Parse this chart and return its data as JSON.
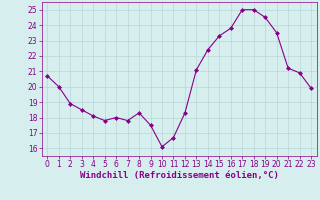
{
  "x": [
    0,
    1,
    2,
    3,
    4,
    5,
    6,
    7,
    8,
    9,
    10,
    11,
    12,
    13,
    14,
    15,
    16,
    17,
    18,
    19,
    20,
    21,
    22,
    23
  ],
  "y": [
    20.7,
    20.0,
    18.9,
    18.5,
    18.1,
    17.8,
    18.0,
    17.8,
    18.3,
    17.5,
    16.1,
    16.7,
    18.3,
    21.1,
    22.4,
    23.3,
    23.8,
    25.0,
    25.0,
    24.5,
    23.5,
    21.2,
    20.9,
    19.9
  ],
  "line_color": "#880088",
  "marker": "D",
  "marker_size": 2.0,
  "bg_color": "#d6eeee",
  "grid_color": "#b8d8d8",
  "xlabel": "Windchill (Refroidissement éolien,°C)",
  "ylim": [
    15.5,
    25.5
  ],
  "xlim": [
    -0.5,
    23.5
  ],
  "yticks": [
    16,
    17,
    18,
    19,
    20,
    21,
    22,
    23,
    24,
    25
  ],
  "xticks": [
    0,
    1,
    2,
    3,
    4,
    5,
    6,
    7,
    8,
    9,
    10,
    11,
    12,
    13,
    14,
    15,
    16,
    17,
    18,
    19,
    20,
    21,
    22,
    23
  ],
  "tick_label_fontsize": 5.5,
  "xlabel_fontsize": 6.5,
  "tick_color": "#880088",
  "axis_color": "#880088",
  "linewidth": 0.8
}
